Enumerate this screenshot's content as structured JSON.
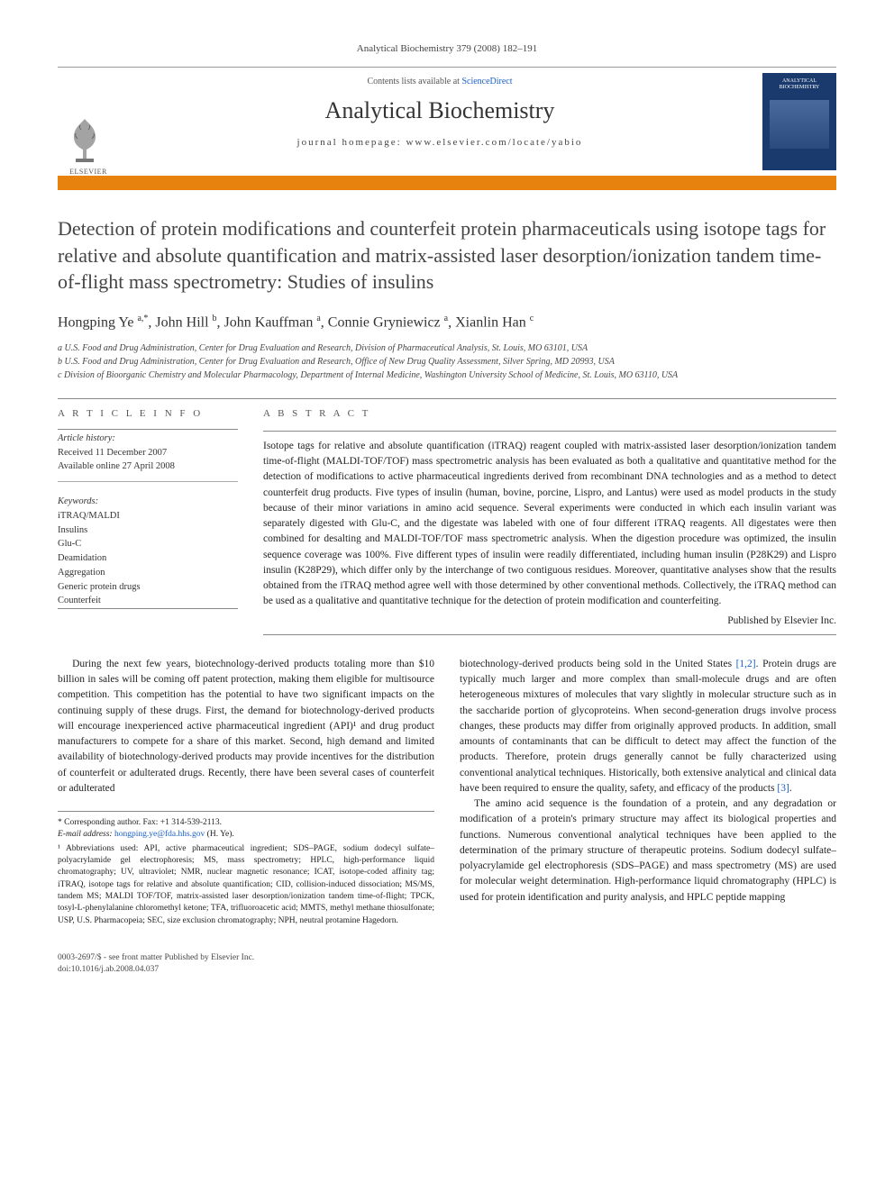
{
  "running_head": "Analytical Biochemistry 379 (2008) 182–191",
  "header": {
    "toplinks_prefix": "Contents lists available at ",
    "toplinks_link": "ScienceDirect",
    "journal": "Analytical Biochemistry",
    "homepage_prefix": "journal homepage: ",
    "homepage_url": "www.elsevier.com/locate/yabio",
    "publisher_name": "ELSEVIER",
    "cover_label": "ANALYTICAL BIOCHEMISTRY"
  },
  "title": "Detection of protein modifications and counterfeit protein pharmaceuticals using isotope tags for relative and absolute quantification and matrix-assisted laser desorption/ionization tandem time-of-flight mass spectrometry: Studies of insulins",
  "authors_html": "Hongping Ye <span class='sup'>a,*</span>, John Hill <span class='sup'>b</span>, John Kauffman <span class='sup'>a</span>, Connie Gryniewicz <span class='sup'>a</span>, Xianlin Han <span class='sup'>c</span>",
  "affiliations": [
    "a U.S. Food and Drug Administration, Center for Drug Evaluation and Research, Division of Pharmaceutical Analysis, St. Louis, MO 63101, USA",
    "b U.S. Food and Drug Administration, Center for Drug Evaluation and Research, Office of New Drug Quality Assessment, Silver Spring, MD 20993, USA",
    "c Division of Bioorganic Chemistry and Molecular Pharmacology, Department of Internal Medicine, Washington University School of Medicine, St. Louis, MO 63110, USA"
  ],
  "article_info": {
    "head": "A R T I C L E   I N F O",
    "history_head": "Article history:",
    "received": "Received 11 December 2007",
    "online": "Available online 27 April 2008",
    "keywords_head": "Keywords:",
    "keywords": [
      "iTRAQ/MALDI",
      "Insulins",
      "Glu-C",
      "Deamidation",
      "Aggregation",
      "Generic protein drugs",
      "Counterfeit"
    ]
  },
  "abstract": {
    "head": "A B S T R A C T",
    "text": "Isotope tags for relative and absolute quantification (iTRAQ) reagent coupled with matrix-assisted laser desorption/ionization tandem time-of-flight (MALDI-TOF/TOF) mass spectrometric analysis has been evaluated as both a qualitative and quantitative method for the detection of modifications to active pharmaceutical ingredients derived from recombinant DNA technologies and as a method to detect counterfeit drug products. Five types of insulin (human, bovine, porcine, Lispro, and Lantus) were used as model products in the study because of their minor variations in amino acid sequence. Several experiments were conducted in which each insulin variant was separately digested with Glu-C, and the digestate was labeled with one of four different iTRAQ reagents. All digestates were then combined for desalting and MALDI-TOF/TOF mass spectrometric analysis. When the digestion procedure was optimized, the insulin sequence coverage was 100%. Five different types of insulin were readily differentiated, including human insulin (P28K29) and Lispro insulin (K28P29), which differ only by the interchange of two contiguous residues. Moreover, quantitative analyses show that the results obtained from the iTRAQ method agree well with those determined by other conventional methods. Collectively, the iTRAQ method can be used as a qualitative and quantitative technique for the detection of protein modification and counterfeiting.",
    "published_by": "Published by Elsevier Inc."
  },
  "body": {
    "col1_p1": "During the next few years, biotechnology-derived products totaling more than $10 billion in sales will be coming off patent protection, making them eligible for multisource competition. This competition has the potential to have two significant impacts on the continuing supply of these drugs. First, the demand for biotechnology-derived products will encourage inexperienced active pharmaceutical ingredient (API)¹ and drug product manufacturers to compete for a share of this market. Second, high demand and limited availability of biotechnology-derived products may provide incentives for the distribution of counterfeit or adulterated drugs. Recently, there have been several cases of counterfeit or adulterated",
    "col2_p1": "biotechnology-derived products being sold in the United States [1,2]. Protein drugs are typically much larger and more complex than small-molecule drugs and are often heterogeneous mixtures of molecules that vary slightly in molecular structure such as in the saccharide portion of glycoproteins. When second-generation drugs involve process changes, these products may differ from originally approved products. In addition, small amounts of contaminants that can be difficult to detect may affect the function of the products. Therefore, protein drugs generally cannot be fully characterized using conventional analytical techniques. Historically, both extensive analytical and clinical data have been required to ensure the quality, safety, and efficacy of the products [3].",
    "col2_p2": "The amino acid sequence is the foundation of a protein, and any degradation or modification of a protein's primary structure may affect its biological properties and functions. Numerous conventional analytical techniques have been applied to the determination of the primary structure of therapeutic proteins. Sodium dodecyl sulfate–polyacrylamide gel electrophoresis (SDS–PAGE) and mass spectrometry (MS) are used for molecular weight determination. High-performance liquid chromatography (HPLC) is used for protein identification and purity analysis, and HPLC peptide mapping"
  },
  "footnotes": {
    "corr": "* Corresponding author. Fax: +1 314-539-2113.",
    "email_label": "E-mail address: ",
    "email": "hongping.ye@fda.hhs.gov",
    "email_suffix": " (H. Ye).",
    "abbrev": "¹ Abbreviations used: API, active pharmaceutical ingredient; SDS–PAGE, sodium dodecyl sulfate–polyacrylamide gel electrophoresis; MS, mass spectrometry; HPLC, high-performance liquid chromatography; UV, ultraviolet; NMR, nuclear magnetic resonance; ICAT, isotope-coded affinity tag; iTRAQ, isotope tags for relative and absolute quantification; CID, collision-induced dissociation; MS/MS, tandem MS; MALDI TOF/TOF, matrix-assisted laser desorption/ionization tandem time-of-flight; TPCK, tosyl-L-phenylalanine chloromethyl ketone; TFA, trifluoroacetic acid; MMTS, methyl methane thiosulfonate; USP, U.S. Pharmacopeia; SEC, size exclusion chromatography; NPH, neutral protamine Hagedorn."
  },
  "bottom": {
    "line1": "0003-2697/$ - see front matter Published by Elsevier Inc.",
    "line2": "doi:10.1016/j.ab.2008.04.037"
  },
  "colors": {
    "orange_bar": "#e8820e",
    "cover_bg": "#1a3a6e",
    "link": "#1a5fc9"
  }
}
